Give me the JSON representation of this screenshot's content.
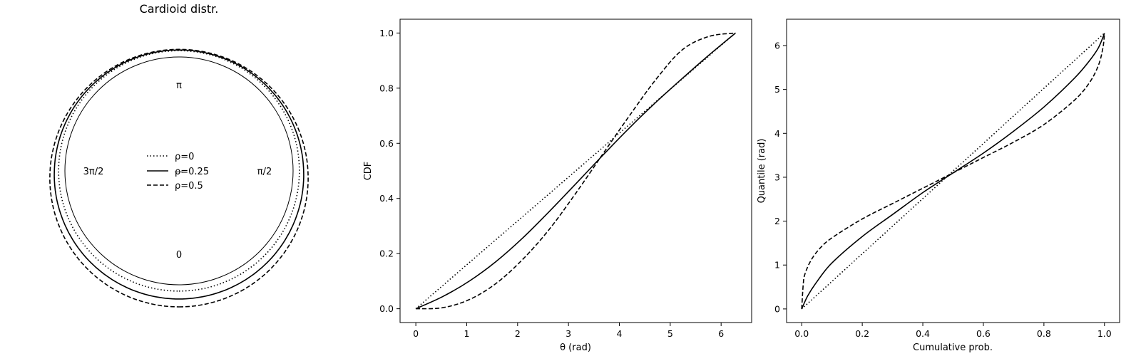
{
  "chart_data": [
    {
      "type": "line",
      "projection": "polar",
      "title": "Cardioid distr.",
      "angle_labels": [
        "0",
        "π/2",
        "π",
        "3π/2"
      ],
      "rho_values": [
        0,
        0.25,
        0.5
      ],
      "series": [
        {
          "name": "ρ=0",
          "dash": "dotted"
        },
        {
          "name": "ρ=0.25",
          "dash": "solid"
        },
        {
          "name": "ρ=0.5",
          "dash": "dashed"
        }
      ],
      "overlay": "—"
    },
    {
      "type": "line",
      "xlabel": "θ (rad)",
      "ylabel": "CDF",
      "xlim": [
        -0.31,
        6.6
      ],
      "ylim": [
        -0.05,
        1.05
      ],
      "xticks": [
        "0",
        "1",
        "2",
        "3",
        "4",
        "5",
        "6"
      ],
      "yticks": [
        "0.0",
        "0.2",
        "0.4",
        "0.6",
        "0.8",
        "1.0"
      ],
      "series": [
        {
          "name": "ρ=0",
          "dash": "dotted",
          "x": [
            0,
            0.5236,
            1.0472,
            1.5708,
            2.0944,
            2.618,
            3.1416,
            3.6652,
            4.1888,
            4.7124,
            5.236,
            5.7596,
            6.2832
          ],
          "y": [
            0,
            0.0833,
            0.1667,
            0.25,
            0.3333,
            0.4167,
            0.5,
            0.5833,
            0.6667,
            0.75,
            0.8333,
            0.9167,
            1.0
          ]
        },
        {
          "name": "ρ=0.25",
          "dash": "solid",
          "x": [
            0,
            0.5236,
            1.0472,
            1.5708,
            2.0944,
            2.618,
            3.1416,
            3.6652,
            4.1888,
            4.7124,
            5.236,
            5.7596,
            6.2832
          ],
          "y": [
            0,
            0.0437,
            0.0998,
            0.1704,
            0.2555,
            0.3518,
            0.4528,
            0.5547,
            0.6542,
            0.7477,
            0.8352,
            0.9197,
            1.0
          ]
        },
        {
          "name": "ρ=0.5",
          "dash": "dashed",
          "x": [
            0,
            0.5236,
            1.0472,
            1.5708,
            2.0944,
            2.618,
            3.1416,
            3.6652,
            4.1888,
            4.7124,
            5.236,
            5.7596,
            6.2832
          ],
          "y": [
            0,
            0.0037,
            0.0329,
            0.0909,
            0.1778,
            0.2869,
            0.4185,
            0.5585,
            0.6975,
            0.8301,
            0.9389,
            0.9875,
            1.0
          ]
        }
      ]
    },
    {
      "type": "line",
      "xlabel": "Cumulative prob.",
      "ylabel": "Quantile (rad)",
      "xlim": [
        -0.05,
        1.05
      ],
      "ylim": [
        -0.31,
        6.6
      ],
      "xticks": [
        "0.0",
        "0.2",
        "0.4",
        "0.6",
        "0.8",
        "1.0"
      ],
      "yticks": [
        "0",
        "1",
        "2",
        "3",
        "4",
        "5",
        "6"
      ],
      "series": [
        {
          "name": "ρ=0",
          "dash": "dotted",
          "x": [
            0,
            0.1,
            0.2,
            0.3,
            0.4,
            0.5,
            0.6,
            0.7,
            0.8,
            0.9,
            1.0
          ],
          "y": [
            0,
            0.6283,
            1.2566,
            1.885,
            2.5133,
            3.1416,
            3.7699,
            4.3982,
            5.0265,
            5.6549,
            6.2832
          ]
        },
        {
          "name": "ρ=0.25",
          "dash": "solid",
          "x": [
            0,
            0.02,
            0.05,
            0.1,
            0.2,
            0.3,
            0.4,
            0.5,
            0.6,
            0.7,
            0.8,
            0.9,
            0.95,
            0.98,
            1.0
          ],
          "y": [
            0,
            0.3,
            0.62,
            1.05,
            1.65,
            2.15,
            2.65,
            3.1,
            3.55,
            4.05,
            4.6,
            5.25,
            5.65,
            5.95,
            6.28
          ]
        },
        {
          "name": "ρ=0.5",
          "dash": "dashed",
          "x": [
            0,
            0.005,
            0.01,
            0.03,
            0.06,
            0.1,
            0.2,
            0.3,
            0.4,
            0.5,
            0.6,
            0.7,
            0.8,
            0.9,
            0.95,
            0.98,
            0.995,
            1.0
          ],
          "y": [
            0,
            0.55,
            0.78,
            1.1,
            1.38,
            1.62,
            2.05,
            2.4,
            2.75,
            3.1,
            3.45,
            3.8,
            4.2,
            4.75,
            5.15,
            5.55,
            5.95,
            6.28
          ]
        }
      ]
    }
  ]
}
